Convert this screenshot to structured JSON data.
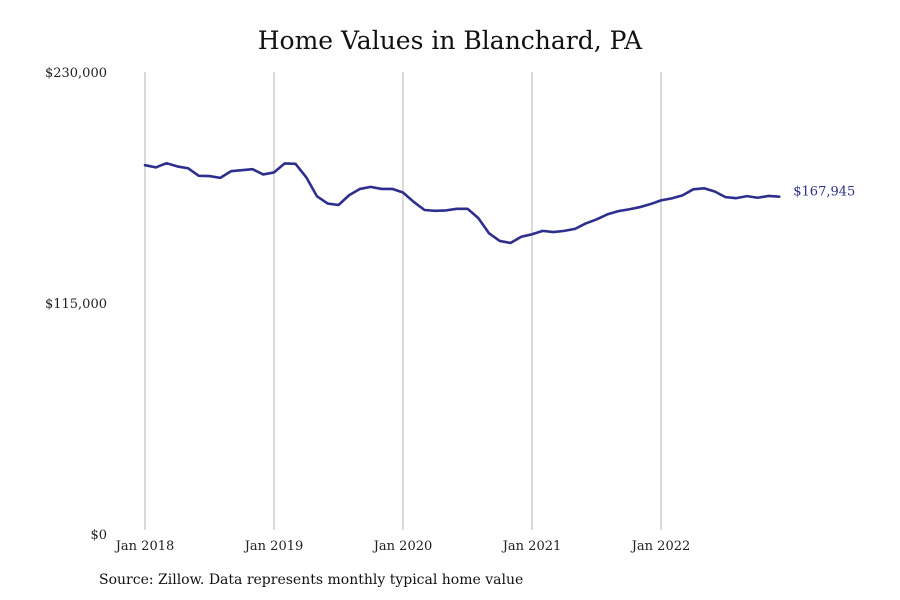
{
  "chart_data": {
    "type": "line",
    "title": "Home Values in Blanchard, PA",
    "source": "Source: Zillow. Data represents monthly typical home value",
    "xlabel": "",
    "ylabel": "",
    "ylim": [
      0,
      230000
    ],
    "y_ticks": [
      {
        "value": 0,
        "label": "$0"
      },
      {
        "value": 115000,
        "label": "$115,000"
      },
      {
        "value": 230000,
        "label": "$230,000"
      }
    ],
    "x_ticks": [
      {
        "index": 0,
        "label": "Jan 2018"
      },
      {
        "index": 12,
        "label": "Jan 2019"
      },
      {
        "index": 24,
        "label": "Jan 2020"
      },
      {
        "index": 36,
        "label": "Jan 2021"
      },
      {
        "index": 48,
        "label": "Jan 2022"
      }
    ],
    "grid": {
      "vertical": true,
      "horizontal": false
    },
    "line_color": "#2e2e8f",
    "end_label": "$167,945",
    "series": [
      {
        "values": [
          183600,
          182500,
          184600,
          183000,
          182100,
          178300,
          178200,
          177300,
          180600,
          181100,
          181600,
          179000,
          180000,
          184500,
          184300,
          177600,
          168100,
          164500,
          163800,
          168700,
          171800,
          172800,
          171800,
          171800,
          170000,
          165300,
          161300,
          160900,
          161100,
          161900,
          161900,
          157300,
          149700,
          145900,
          144900,
          148000,
          149200,
          150900,
          150300,
          150900,
          151900,
          154600,
          156600,
          159100,
          160700,
          161600,
          162700,
          164200,
          166100,
          167100,
          168600,
          171600,
          172100,
          170500,
          167700,
          167200,
          168200,
          167400,
          168300,
          167945
        ]
      }
    ]
  }
}
